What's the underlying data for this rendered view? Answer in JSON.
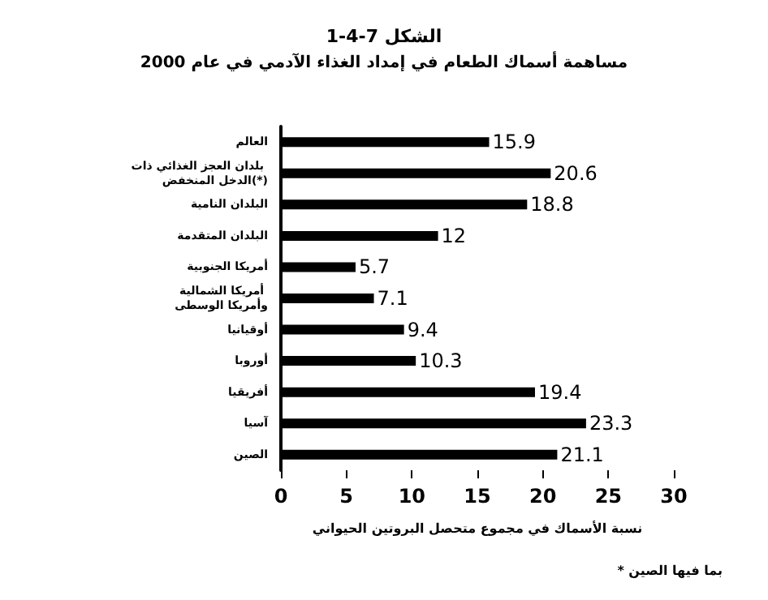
{
  "chart_data": {
    "type": "bar",
    "orientation": "horizontal",
    "title": "الشكل 7-4-1",
    "subtitle": "مساهمة أسماك الطعام في إمداد الغذاء الآدمي في عام 2000",
    "xlabel": "نسبة الأسماك في مجموع متحصل البروتين الحيواني",
    "annotations": [
      "* بما فيها الصين"
    ],
    "categories": [
      "العالم",
      "بلدان العجز الغذائي ذات الدخل المنخفض(*)",
      "البلدان النامية",
      "البلدان المتقدمة",
      "أمريكا الجنوبية",
      "أمريكا الشمالية وأمريكا الوسطى",
      "أوقيانيا",
      "أوروبا",
      "أفريقيا",
      "آسيا",
      "الصين"
    ],
    "values": [
      15.9,
      20.6,
      18.8,
      12,
      5.7,
      7.1,
      9.4,
      10.3,
      19.4,
      23.3,
      21.1
    ],
    "color": "#000000",
    "xlim": [
      0,
      30
    ],
    "xticks": [
      0,
      5,
      10,
      15,
      20,
      25,
      30
    ],
    "data_labels": true,
    "grid": false
  }
}
